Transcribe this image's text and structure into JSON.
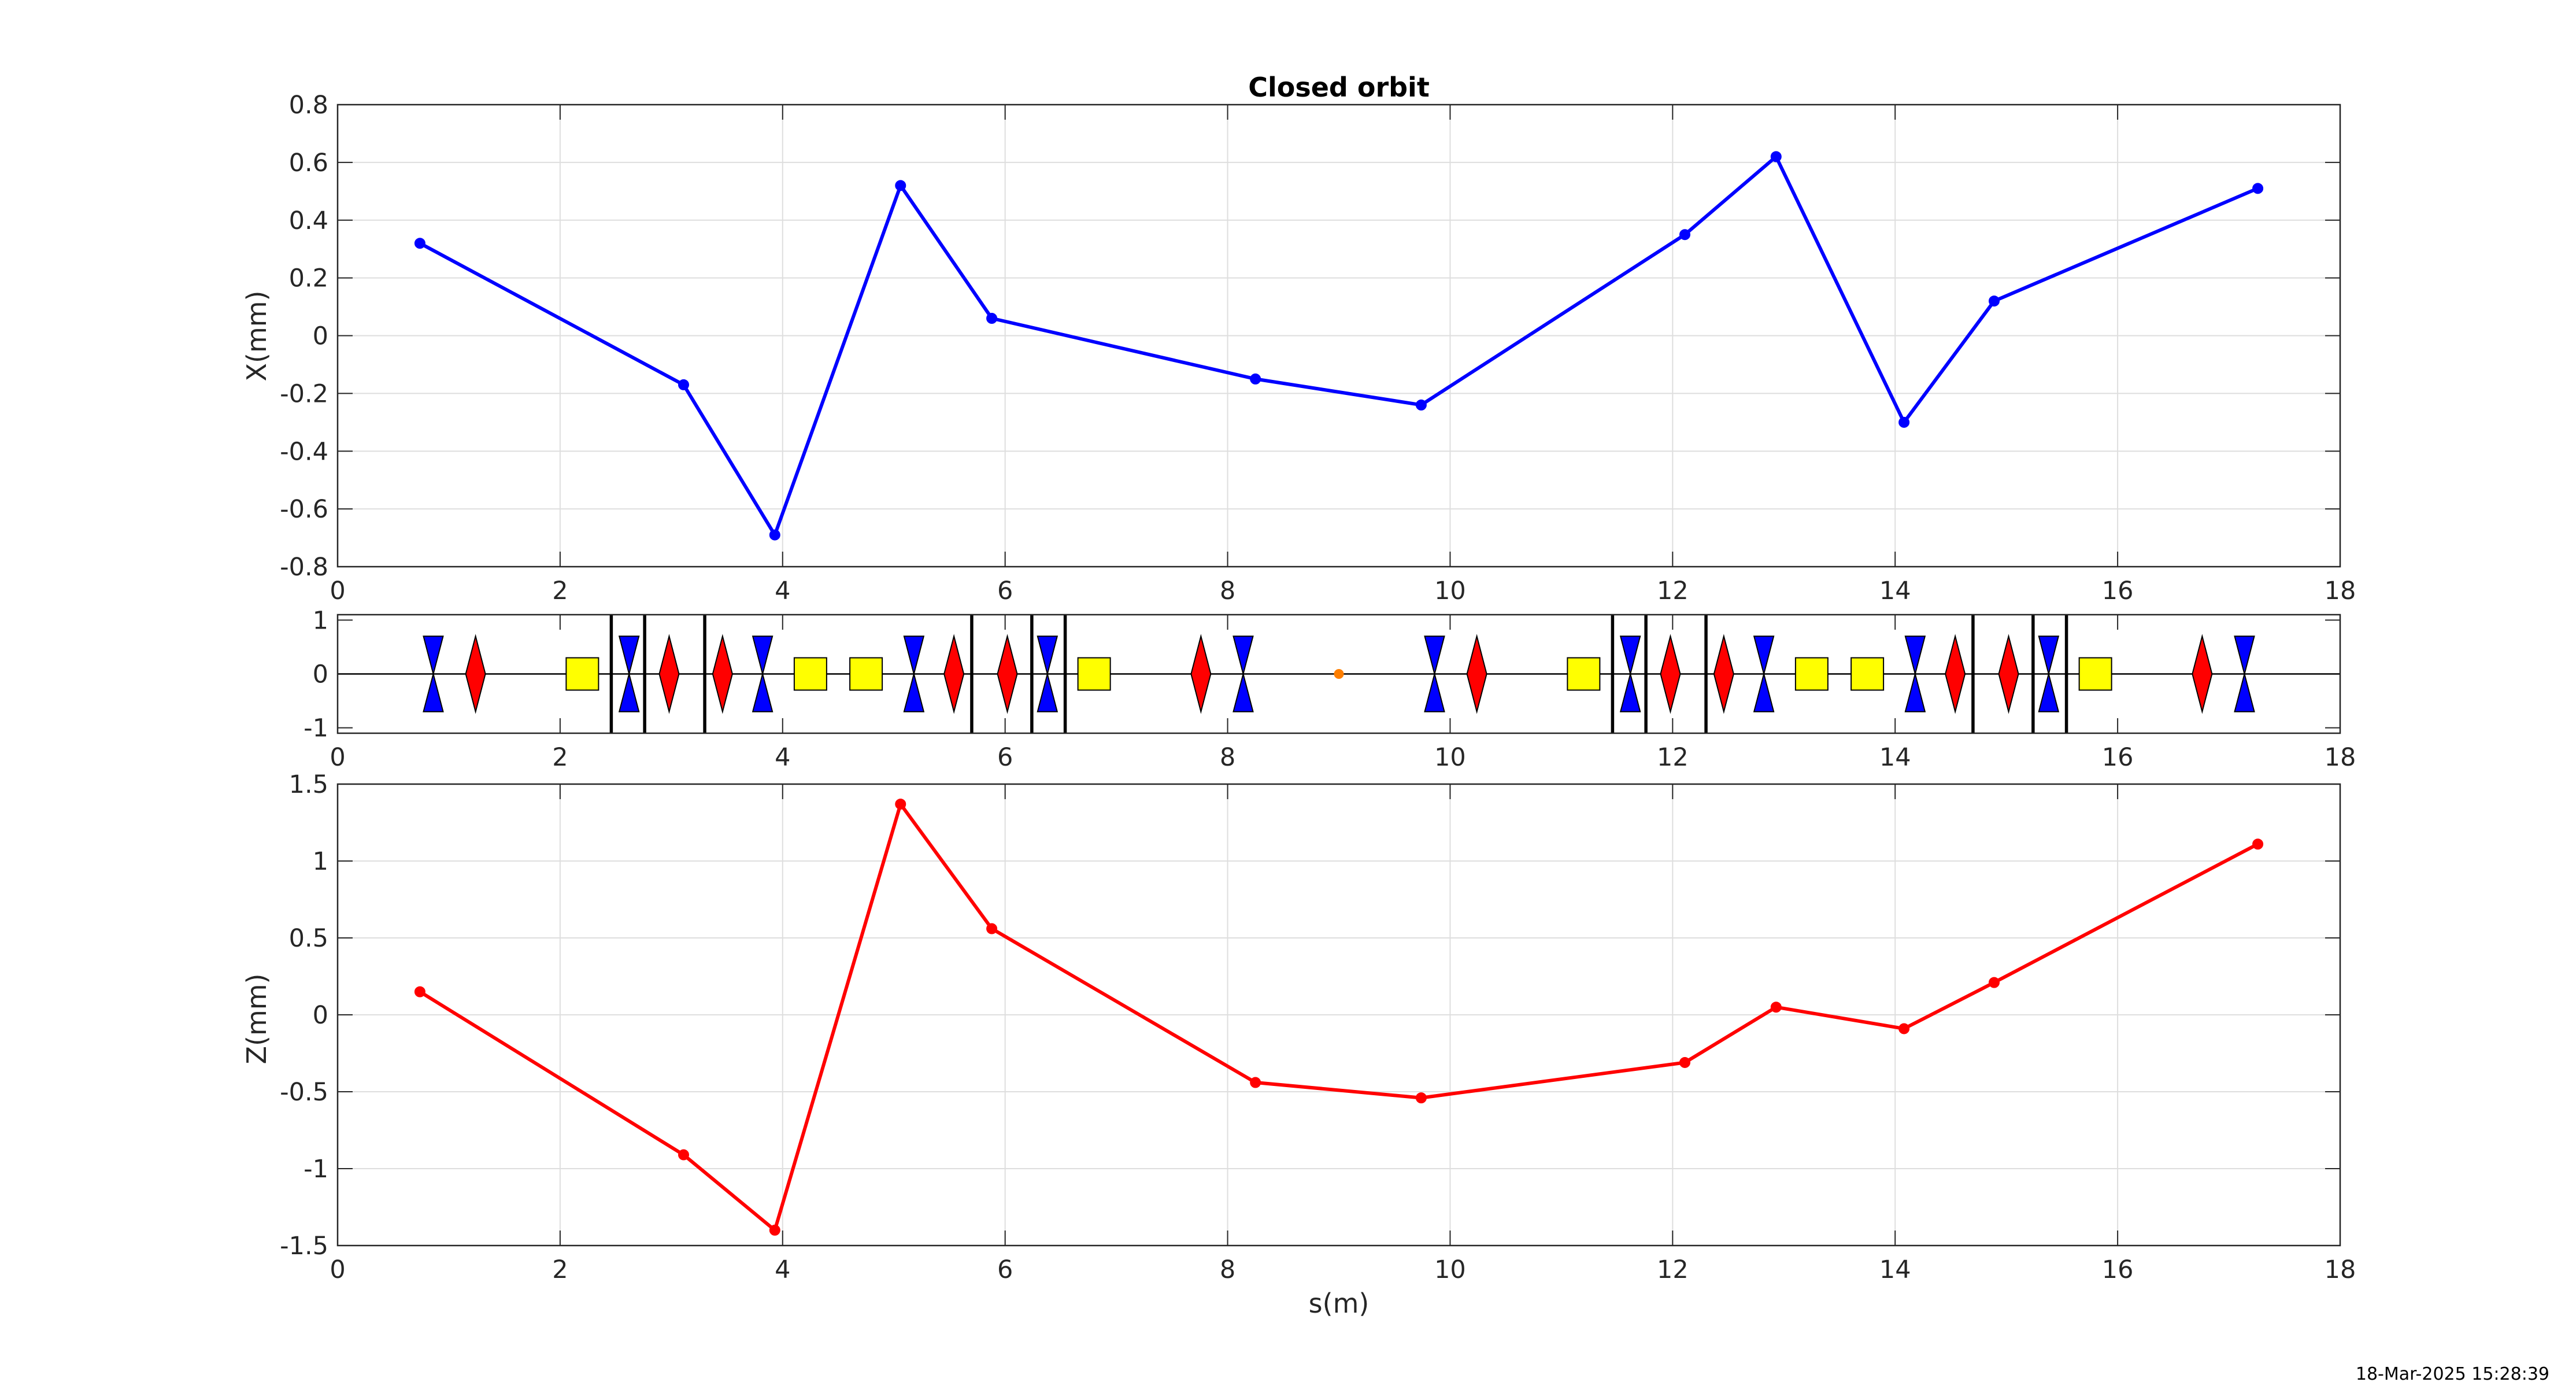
{
  "chart_data": [
    {
      "type": "line",
      "title": "Closed orbit",
      "xlabel": "",
      "ylabel": "X(mm)",
      "xlim": [
        0,
        18
      ],
      "ylim": [
        -0.8,
        0.8
      ],
      "xticks": [
        "0",
        "2",
        "4",
        "6",
        "8",
        "10",
        "12",
        "14",
        "16",
        "18"
      ],
      "yticks": [
        "-0.8",
        "-0.6",
        "-0.4",
        "-0.2",
        "0",
        "0.2",
        "0.4",
        "0.6",
        "0.8"
      ],
      "grid": true,
      "series": [
        {
          "color": "#0000ff",
          "marker": "dot",
          "x": [
            0.74,
            3.11,
            3.93,
            5.06,
            5.88,
            8.25,
            9.74,
            12.11,
            12.93,
            14.08,
            14.89,
            17.26
          ],
          "y": [
            0.32,
            -0.17,
            -0.69,
            0.52,
            0.06,
            -0.15,
            -0.24,
            0.35,
            0.62,
            -0.3,
            0.12,
            0.51
          ]
        }
      ]
    },
    {
      "type": "lattice",
      "xlim": [
        0,
        18
      ],
      "ylim": [
        -1.1,
        1.1
      ],
      "xticks": [
        "0",
        "2",
        "4",
        "6",
        "8",
        "10",
        "12",
        "14",
        "16",
        "18"
      ],
      "yticks": [
        "-1",
        "0",
        "1"
      ],
      "colors": {
        "focusing_quad": "#ff0000",
        "defocusing_quad": "#0000ff",
        "sextupole": "#ffff00",
        "dipole_edge": "#000000",
        "monitor": "#ff7f00",
        "axis_line": "#000000"
      },
      "defocusing_quads": [
        0.86,
        2.62,
        3.82,
        5.18,
        6.38,
        8.14,
        9.86,
        11.62,
        12.82,
        14.18,
        15.38,
        17.14
      ],
      "focusing_quads": [
        1.24,
        2.98,
        3.46,
        5.54,
        6.02,
        7.76,
        10.24,
        11.98,
        12.46,
        14.54,
        15.02,
        16.76
      ],
      "sextupoles": [
        2.2,
        4.25,
        4.75,
        6.8,
        11.2,
        13.25,
        13.75,
        15.8
      ],
      "dipole_edges": [
        2.46,
        2.76,
        3.3,
        5.7,
        6.24,
        6.54,
        11.46,
        11.76,
        12.3,
        14.7,
        15.24,
        15.54
      ],
      "monitors": [
        9.0
      ]
    },
    {
      "type": "line",
      "title": "",
      "xlabel": "s(m)",
      "ylabel": "Z(mm)",
      "xlim": [
        0,
        18
      ],
      "ylim": [
        -1.5,
        1.5
      ],
      "xticks": [
        "0",
        "2",
        "4",
        "6",
        "8",
        "10",
        "12",
        "14",
        "16",
        "18"
      ],
      "yticks": [
        "-1.5",
        "-1",
        "-0.5",
        "0",
        "0.5",
        "1",
        "1.5"
      ],
      "grid": true,
      "series": [
        {
          "color": "#ff0000",
          "marker": "dot",
          "x": [
            0.74,
            3.11,
            3.93,
            5.06,
            5.88,
            8.25,
            9.74,
            12.11,
            12.93,
            14.08,
            14.89,
            17.26
          ],
          "y": [
            0.15,
            -0.91,
            -1.4,
            1.37,
            0.56,
            -0.44,
            -0.54,
            -0.31,
            0.05,
            -0.09,
            0.21,
            1.11
          ]
        }
      ]
    }
  ],
  "timestamp": "18-Mar-2025 15:28:39"
}
